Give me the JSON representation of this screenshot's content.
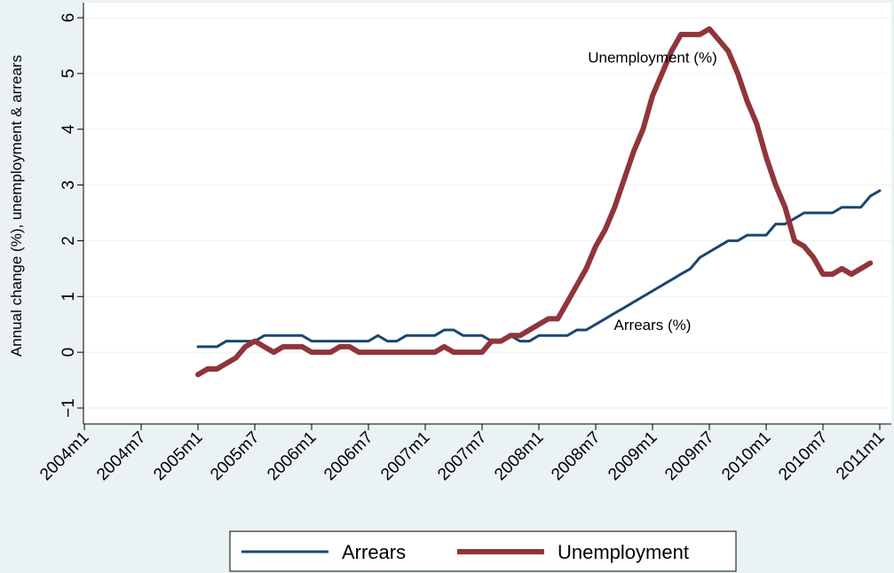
{
  "chart_data": {
    "type": "line",
    "ylabel": "Annual change (%), unemployment & arrears",
    "xlabel": "",
    "ylim": [
      -1,
      6
    ],
    "yticks": [
      -1,
      0,
      1,
      2,
      3,
      4,
      5,
      6
    ],
    "ytick_labels": [
      "−1",
      "0",
      "1",
      "2",
      "3",
      "4",
      "5",
      "6"
    ],
    "xticks": [
      "2004m1",
      "2004m7",
      "2005m1",
      "2005m7",
      "2006m1",
      "2006m7",
      "2007m1",
      "2007m7",
      "2008m1",
      "2008m7",
      "2009m1",
      "2009m7",
      "2010m1",
      "2010m7",
      "2011m1"
    ],
    "xlim": [
      "2004m1",
      "2011m1"
    ],
    "grid": "horizontal",
    "legend_placement": "bottom",
    "series": [
      {
        "name": "Arrears",
        "color": "#1a476f",
        "x_start": "2005m1",
        "values": [
          0.1,
          0.1,
          0.1,
          0.2,
          0.2,
          0.2,
          0.2,
          0.3,
          0.3,
          0.3,
          0.3,
          0.3,
          0.2,
          0.2,
          0.2,
          0.2,
          0.2,
          0.2,
          0.2,
          0.3,
          0.2,
          0.2,
          0.3,
          0.3,
          0.3,
          0.3,
          0.4,
          0.4,
          0.3,
          0.3,
          0.3,
          0.2,
          0.2,
          0.3,
          0.2,
          0.2,
          0.3,
          0.3,
          0.3,
          0.3,
          0.4,
          0.4,
          0.5,
          0.6,
          0.7,
          0.8,
          0.9,
          1.0,
          1.1,
          1.2,
          1.3,
          1.4,
          1.5,
          1.7,
          1.8,
          1.9,
          2.0,
          2.0,
          2.1,
          2.1,
          2.1,
          2.3,
          2.3,
          2.4,
          2.5,
          2.5,
          2.5,
          2.5,
          2.6,
          2.6,
          2.6,
          2.8,
          2.9
        ]
      },
      {
        "name": "Unemployment",
        "color": "#90353b",
        "x_start": "2005m1",
        "values": [
          -0.4,
          -0.3,
          -0.3,
          -0.2,
          -0.1,
          0.1,
          0.2,
          0.1,
          0.0,
          0.1,
          0.1,
          0.1,
          0.0,
          0.0,
          0.0,
          0.1,
          0.1,
          0.0,
          0.0,
          0.0,
          0.0,
          0.0,
          0.0,
          0.0,
          0.0,
          0.0,
          0.1,
          0.0,
          0.0,
          0.0,
          0.0,
          0.2,
          0.2,
          0.3,
          0.3,
          0.4,
          0.5,
          0.6,
          0.6,
          0.9,
          1.2,
          1.5,
          1.9,
          2.2,
          2.6,
          3.1,
          3.6,
          4.0,
          4.6,
          5.0,
          5.4,
          5.7,
          5.7,
          5.7,
          5.8,
          5.6,
          5.4,
          5.0,
          4.5,
          4.1,
          3.5,
          3.0,
          2.6,
          2.0,
          1.9,
          1.7,
          1.4,
          1.4,
          1.5,
          1.4,
          1.5,
          1.6
        ]
      }
    ],
    "annotations": [
      {
        "text": "Unemployment (%)",
        "x": "2009m1",
        "y": 5.2
      },
      {
        "text": "Arrears (%)",
        "x": "2009m1",
        "y": 0.4
      }
    ]
  },
  "legend": {
    "items": [
      {
        "label": "Arrears",
        "color": "#1a476f"
      },
      {
        "label": "Unemployment",
        "color": "#90353b"
      }
    ]
  }
}
